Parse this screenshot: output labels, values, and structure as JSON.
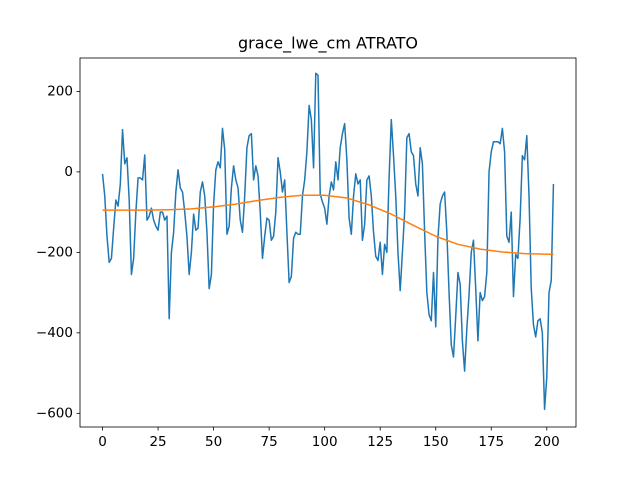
{
  "chart_data": {
    "type": "line",
    "title": "grace_lwe_cm ATRATO",
    "x": [
      0,
      1,
      2,
      3,
      4,
      5,
      6,
      7,
      8,
      9,
      10,
      11,
      12,
      13,
      14,
      15,
      16,
      17,
      18,
      19,
      20,
      21,
      22,
      23,
      24,
      25,
      26,
      27,
      28,
      29,
      30,
      31,
      32,
      33,
      34,
      35,
      36,
      37,
      38,
      39,
      40,
      41,
      42,
      43,
      44,
      45,
      46,
      47,
      48,
      49,
      50,
      51,
      52,
      53,
      54,
      55,
      56,
      57,
      58,
      59,
      60,
      61,
      62,
      63,
      64,
      65,
      66,
      67,
      68,
      69,
      70,
      71,
      72,
      73,
      74,
      75,
      76,
      77,
      78,
      79,
      80,
      81,
      82,
      83,
      84,
      85,
      86,
      87,
      88,
      89,
      90,
      91,
      92,
      93,
      94,
      95,
      96,
      97,
      98,
      99,
      100,
      101,
      102,
      103,
      104,
      105,
      106,
      107,
      108,
      109,
      110,
      111,
      112,
      113,
      114,
      115,
      116,
      117,
      118,
      119,
      120,
      121,
      122,
      123,
      124,
      125,
      126,
      127,
      128,
      129,
      130,
      131,
      132,
      133,
      134,
      135,
      136,
      137,
      138,
      139,
      140,
      141,
      142,
      143,
      144,
      145,
      146,
      147,
      148,
      149,
      150,
      151,
      152,
      153,
      154,
      155,
      156,
      157,
      158,
      159,
      160,
      161,
      162,
      163,
      164,
      165,
      166,
      167,
      168,
      169,
      170,
      171,
      172,
      173,
      174,
      175,
      176,
      177,
      178,
      179,
      180,
      181,
      182,
      183,
      184,
      185,
      186,
      187,
      188,
      189,
      190,
      191,
      192,
      193,
      194,
      195,
      196,
      197,
      198,
      199,
      200,
      201,
      202,
      203
    ],
    "series": [
      {
        "color": "#1f77b4",
        "values": [
          -5,
          -60,
          -160,
          -225,
          -215,
          -140,
          -70,
          -85,
          -30,
          105,
          20,
          35,
          -70,
          -255,
          -215,
          -100,
          -15,
          -15,
          -20,
          42,
          -120,
          -110,
          -90,
          -120,
          -135,
          -145,
          -100,
          -100,
          -120,
          -110,
          -365,
          -200,
          -150,
          -50,
          5,
          -40,
          -50,
          -100,
          -160,
          -255,
          -200,
          -105,
          -145,
          -140,
          -50,
          -25,
          -60,
          -150,
          -290,
          -255,
          -80,
          5,
          25,
          10,
          108,
          55,
          -155,
          -135,
          -40,
          15,
          -20,
          -40,
          -120,
          -150,
          -60,
          60,
          90,
          95,
          -20,
          15,
          -10,
          -100,
          -215,
          -160,
          -115,
          -120,
          -170,
          -160,
          -100,
          35,
          0,
          -50,
          -20,
          -150,
          -275,
          -260,
          -165,
          -150,
          -155,
          -155,
          -60,
          -20,
          50,
          165,
          130,
          10,
          245,
          240,
          -55,
          -75,
          -90,
          -130,
          -60,
          -25,
          -45,
          25,
          -20,
          60,
          95,
          120,
          30,
          -115,
          -155,
          -60,
          -5,
          -30,
          -20,
          -170,
          -130,
          -20,
          -10,
          -60,
          -150,
          -210,
          -220,
          -175,
          -255,
          -180,
          -200,
          -15,
          130,
          40,
          -60,
          -200,
          -295,
          -200,
          -100,
          85,
          95,
          50,
          40,
          -30,
          -60,
          60,
          20,
          -150,
          -300,
          -355,
          -370,
          -250,
          -385,
          -165,
          -80,
          -60,
          -50,
          -150,
          -300,
          -430,
          -460,
          -360,
          -250,
          -280,
          -420,
          -495,
          -390,
          -305,
          -200,
          -170,
          -290,
          -420,
          -300,
          -320,
          -310,
          -250,
          0,
          50,
          75,
          75,
          75,
          70,
          108,
          50,
          -160,
          -175,
          -100,
          -310,
          -205,
          -215,
          -115,
          40,
          30,
          90,
          -60,
          -290,
          -380,
          -410,
          -370,
          -365,
          -400,
          -590,
          -510,
          -300,
          -270,
          -30
        ]
      },
      {
        "color": "#ff7f0e",
        "x": [
          0,
          10,
          20,
          30,
          40,
          50,
          60,
          70,
          80,
          90,
          100,
          110,
          120,
          130,
          140,
          150,
          160,
          170,
          180,
          190,
          203
        ],
        "values": [
          -95,
          -95,
          -95,
          -94,
          -92,
          -87,
          -80,
          -71,
          -63,
          -58,
          -58,
          -65,
          -82,
          -105,
          -133,
          -160,
          -180,
          -192,
          -199,
          -203,
          -205
        ]
      }
    ],
    "xlim": [
      -10.15,
      213.15
    ],
    "ylim": [
      -634,
      283
    ],
    "xticks": [
      0,
      25,
      50,
      75,
      100,
      125,
      150,
      175,
      200
    ],
    "yticks": [
      {
        "value": -600,
        "label": "−600"
      },
      {
        "value": -400,
        "label": "−400"
      },
      {
        "value": -200,
        "label": "−200"
      },
      0,
      200
    ]
  }
}
